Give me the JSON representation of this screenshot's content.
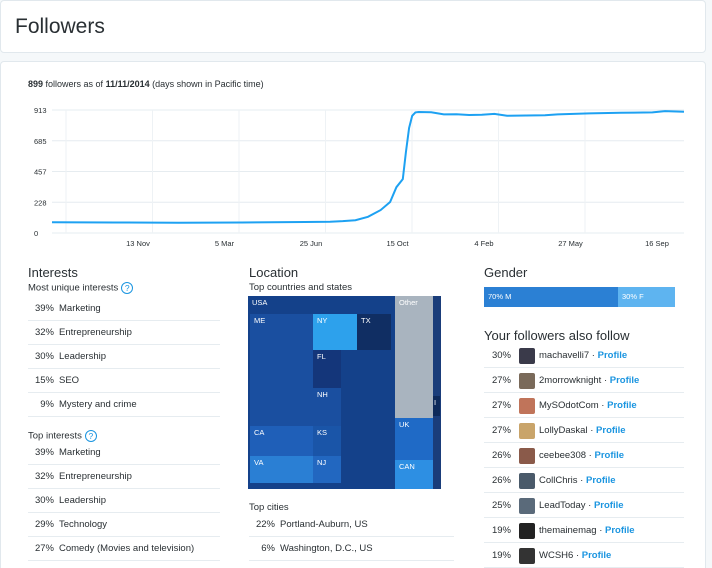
{
  "page": {
    "title": "Followers"
  },
  "summary": {
    "count": "899",
    "text1": " followers as of ",
    "date": "11/11/2014",
    "text2": " (days shown in Pacific time)"
  },
  "chart_data": {
    "type": "line",
    "ylim": [
      0,
      913
    ],
    "yticks": [
      "913",
      "685",
      "457",
      "228",
      "0"
    ],
    "xticks": [
      "13 Nov",
      "5 Mar",
      "25 Jun",
      "15 Oct",
      "4 Feb",
      "27 May",
      "16 Sep"
    ],
    "series": [
      {
        "color": "#1da1f2",
        "x": [
          0,
          0.1,
          0.2,
          0.3,
          0.4,
          0.44,
          0.46,
          0.48,
          0.5,
          0.52,
          0.535,
          0.545,
          0.555,
          0.56,
          0.565,
          0.57,
          0.575,
          0.58,
          0.6,
          0.62,
          0.64,
          0.66,
          0.68,
          0.7,
          0.72,
          0.75,
          0.78,
          0.8,
          0.85,
          0.9,
          0.95,
          0.97,
          1
        ],
        "y": [
          80,
          78,
          76,
          78,
          82,
          84,
          88,
          95,
          120,
          170,
          230,
          340,
          400,
          600,
          780,
          870,
          895,
          898,
          896,
          880,
          882,
          876,
          878,
          884,
          870,
          872,
          874,
          880,
          888,
          892,
          895,
          905,
          900
        ]
      }
    ]
  },
  "interests": {
    "title": "Interests",
    "unique_label": "Most unique interests",
    "unique": [
      {
        "pct": "39%",
        "label": "Marketing"
      },
      {
        "pct": "32%",
        "label": "Entrepreneurship"
      },
      {
        "pct": "30%",
        "label": "Leadership"
      },
      {
        "pct": "15%",
        "label": "SEO"
      },
      {
        "pct": "9%",
        "label": "Mystery and crime"
      }
    ],
    "top_label": "Top interests",
    "top": [
      {
        "pct": "39%",
        "label": "Marketing"
      },
      {
        "pct": "32%",
        "label": "Entrepreneurship"
      },
      {
        "pct": "30%",
        "label": "Leadership"
      },
      {
        "pct": "29%",
        "label": "Technology"
      },
      {
        "pct": "27%",
        "label": "Comedy (Movies and television)"
      }
    ]
  },
  "location": {
    "title": "Location",
    "subtitle": "Top countries and states",
    "treemap": {
      "usa": "USA",
      "me": "ME",
      "ny": "NY",
      "tx": "TX",
      "fl": "FL",
      "nh": "NH",
      "ca": "CA",
      "ks": "KS",
      "va": "VA",
      "nj": "NJ",
      "other": "Other",
      "uk": "UK",
      "can": "CAN",
      "i": "I"
    },
    "cities_title": "Top cities",
    "cities": [
      {
        "pct": "22%",
        "label": "Portland-Auburn, US"
      },
      {
        "pct": "6%",
        "label": "Washington, D.C., US"
      }
    ]
  },
  "gender": {
    "title": "Gender",
    "male": "70% M",
    "female": "30% F",
    "male_fraction": 0.7
  },
  "also_follow": {
    "title": "Your followers also follow",
    "profile_label": "Profile",
    "items": [
      {
        "pct": "30%",
        "name": "machavelli7",
        "avatar_color": "#3a3a4a"
      },
      {
        "pct": "27%",
        "name": "2morrowknight",
        "avatar_color": "#7a6a5a"
      },
      {
        "pct": "27%",
        "name": "MySOdotCom",
        "avatar_color": "#c0745a"
      },
      {
        "pct": "27%",
        "name": "LollyDaskal",
        "avatar_color": "#c9a46a"
      },
      {
        "pct": "26%",
        "name": "ceebee308",
        "avatar_color": "#8a5a4a"
      },
      {
        "pct": "26%",
        "name": "CollChris",
        "avatar_color": "#4a5a6a"
      },
      {
        "pct": "25%",
        "name": "LeadToday",
        "avatar_color": "#5a6a7a"
      },
      {
        "pct": "19%",
        "name": "themainemag",
        "avatar_color": "#222222"
      },
      {
        "pct": "19%",
        "name": "WCSH6",
        "avatar_color": "#333333"
      }
    ]
  }
}
